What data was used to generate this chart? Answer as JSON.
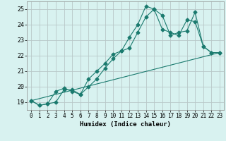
{
  "xlabel": "Humidex (Indice chaleur)",
  "xlim": [
    -0.5,
    23.5
  ],
  "ylim": [
    18.5,
    25.5
  ],
  "yticks": [
    19,
    20,
    21,
    22,
    23,
    24,
    25
  ],
  "xticks": [
    0,
    1,
    2,
    3,
    4,
    5,
    6,
    7,
    8,
    9,
    10,
    11,
    12,
    13,
    14,
    15,
    16,
    17,
    18,
    19,
    20,
    21,
    22,
    23
  ],
  "background_color": "#d8f2f0",
  "grid_color": "#b8c8c8",
  "line_color": "#1a7a6e",
  "line1_x": [
    0,
    1,
    2,
    3,
    4,
    5,
    6,
    7,
    8,
    9,
    10,
    11,
    12,
    13,
    14,
    15,
    16,
    17,
    18,
    19,
    20,
    21,
    22,
    23
  ],
  "line1_y": [
    19.1,
    18.8,
    18.9,
    19.0,
    19.8,
    19.8,
    19.5,
    20.0,
    20.5,
    21.2,
    21.8,
    22.3,
    23.2,
    24.0,
    25.2,
    25.0,
    24.6,
    23.3,
    23.5,
    23.6,
    24.8,
    22.6,
    22.2,
    22.2
  ],
  "line2_x": [
    0,
    1,
    2,
    3,
    4,
    5,
    6,
    7,
    8,
    9,
    10,
    11,
    12,
    13,
    14,
    15,
    16,
    17,
    18,
    19,
    20,
    21,
    22,
    23
  ],
  "line2_y": [
    19.1,
    18.8,
    18.9,
    19.7,
    19.9,
    19.7,
    19.5,
    20.5,
    21.0,
    21.5,
    22.1,
    22.3,
    22.5,
    23.5,
    24.5,
    25.0,
    23.7,
    23.5,
    23.3,
    24.3,
    24.2,
    22.6,
    22.2,
    22.2
  ],
  "line3_x": [
    0,
    23
  ],
  "line3_y": [
    19.1,
    22.2
  ]
}
